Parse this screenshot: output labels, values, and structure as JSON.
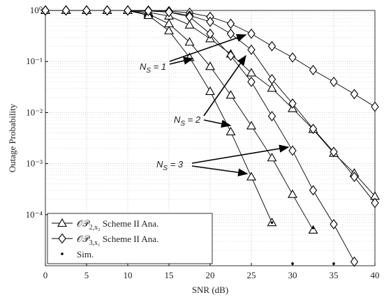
{
  "chart_data": {
    "type": "line",
    "log_y": true,
    "grid": true,
    "legend_position": "lower left",
    "xlabel": "SNR (dB)",
    "ylabel": "Outage Probability",
    "x": [
      0,
      2.5,
      5,
      7.5,
      10,
      12.5,
      15,
      17.5,
      20,
      22.5,
      25,
      27.5,
      30,
      32.5,
      35,
      37.5,
      40
    ],
    "xlim": [
      0,
      40
    ],
    "xticks": [
      0,
      5,
      10,
      15,
      20,
      25,
      30,
      35,
      40
    ],
    "ylim": [
      1e-05,
      1
    ],
    "yticks": [
      {
        "value": 1,
        "label": "10⁰"
      },
      {
        "value": 0.1,
        "label": "10⁻¹"
      },
      {
        "value": 0.01,
        "label": "10⁻²"
      },
      {
        "value": 0.001,
        "label": "10⁻³"
      },
      {
        "value": 0.0001,
        "label": "10⁻⁴"
      }
    ],
    "legend": [
      {
        "main": "𝒪𝒫",
        "sub": "2,x₂",
        "rest": " Scheme II Ana.",
        "marker": "triangle"
      },
      {
        "main": "𝒪𝒫",
        "sub": "3,x₁",
        "rest": " Scheme II Ana.",
        "marker": "diamond"
      },
      {
        "main": "Sim.",
        "marker": "dot"
      }
    ],
    "annotations": [
      {
        "text": "N",
        "sub": "S",
        "rest": " = 1"
      },
      {
        "text": "N",
        "sub": "S",
        "rest": " = 2"
      },
      {
        "text": "N",
        "sub": "S",
        "rest": " = 3"
      }
    ],
    "series": [
      {
        "marker": "triangle",
        "color": "#000000",
        "values": [
          1,
          1,
          1,
          1,
          1,
          0.92,
          0.78,
          0.52,
          0.28,
          0.14,
          0.06,
          0.03,
          0.012,
          0.0047,
          0.0016,
          0.00065,
          0.00023
        ]
      },
      {
        "marker": "triangle",
        "color": "#000000",
        "values": [
          1,
          1,
          1,
          1,
          1,
          0.85,
          0.55,
          0.24,
          0.08,
          0.022,
          0.0055,
          0.0013,
          0.00025,
          5e-05,
          null,
          null,
          null
        ]
      },
      {
        "marker": "triangle",
        "color": "#000000",
        "values": [
          1,
          1,
          1,
          1,
          1,
          0.8,
          0.4,
          0.12,
          0.026,
          0.0042,
          0.00055,
          7e-05,
          null,
          null,
          null,
          null,
          null
        ]
      },
      {
        "marker": "diamond",
        "color": "#000000",
        "values": [
          1,
          1,
          1,
          1,
          1,
          1,
          0.97,
          0.9,
          0.75,
          0.55,
          0.35,
          0.2,
          0.12,
          0.068,
          0.04,
          0.023,
          0.013
        ]
      },
      {
        "marker": "diamond",
        "color": "#000000",
        "values": [
          1,
          1,
          1,
          1,
          1,
          0.98,
          0.93,
          0.8,
          0.6,
          0.35,
          0.17,
          0.045,
          0.015,
          0.0048,
          0.0017,
          0.00055,
          0.00017
        ]
      },
      {
        "marker": "diamond",
        "color": "#000000",
        "values": [
          1,
          1,
          1,
          1,
          1,
          0.98,
          0.93,
          0.75,
          0.35,
          0.13,
          0.04,
          0.0085,
          0.0018,
          0.0003,
          6.5e-05,
          1.2e-05,
          null
        ]
      }
    ],
    "sim": {
      "x": [
        27.5,
        30,
        32.5,
        35
      ],
      "values": [
        7e-05,
        1.1e-05,
        5.5e-05,
        1.1e-05
      ]
    }
  }
}
